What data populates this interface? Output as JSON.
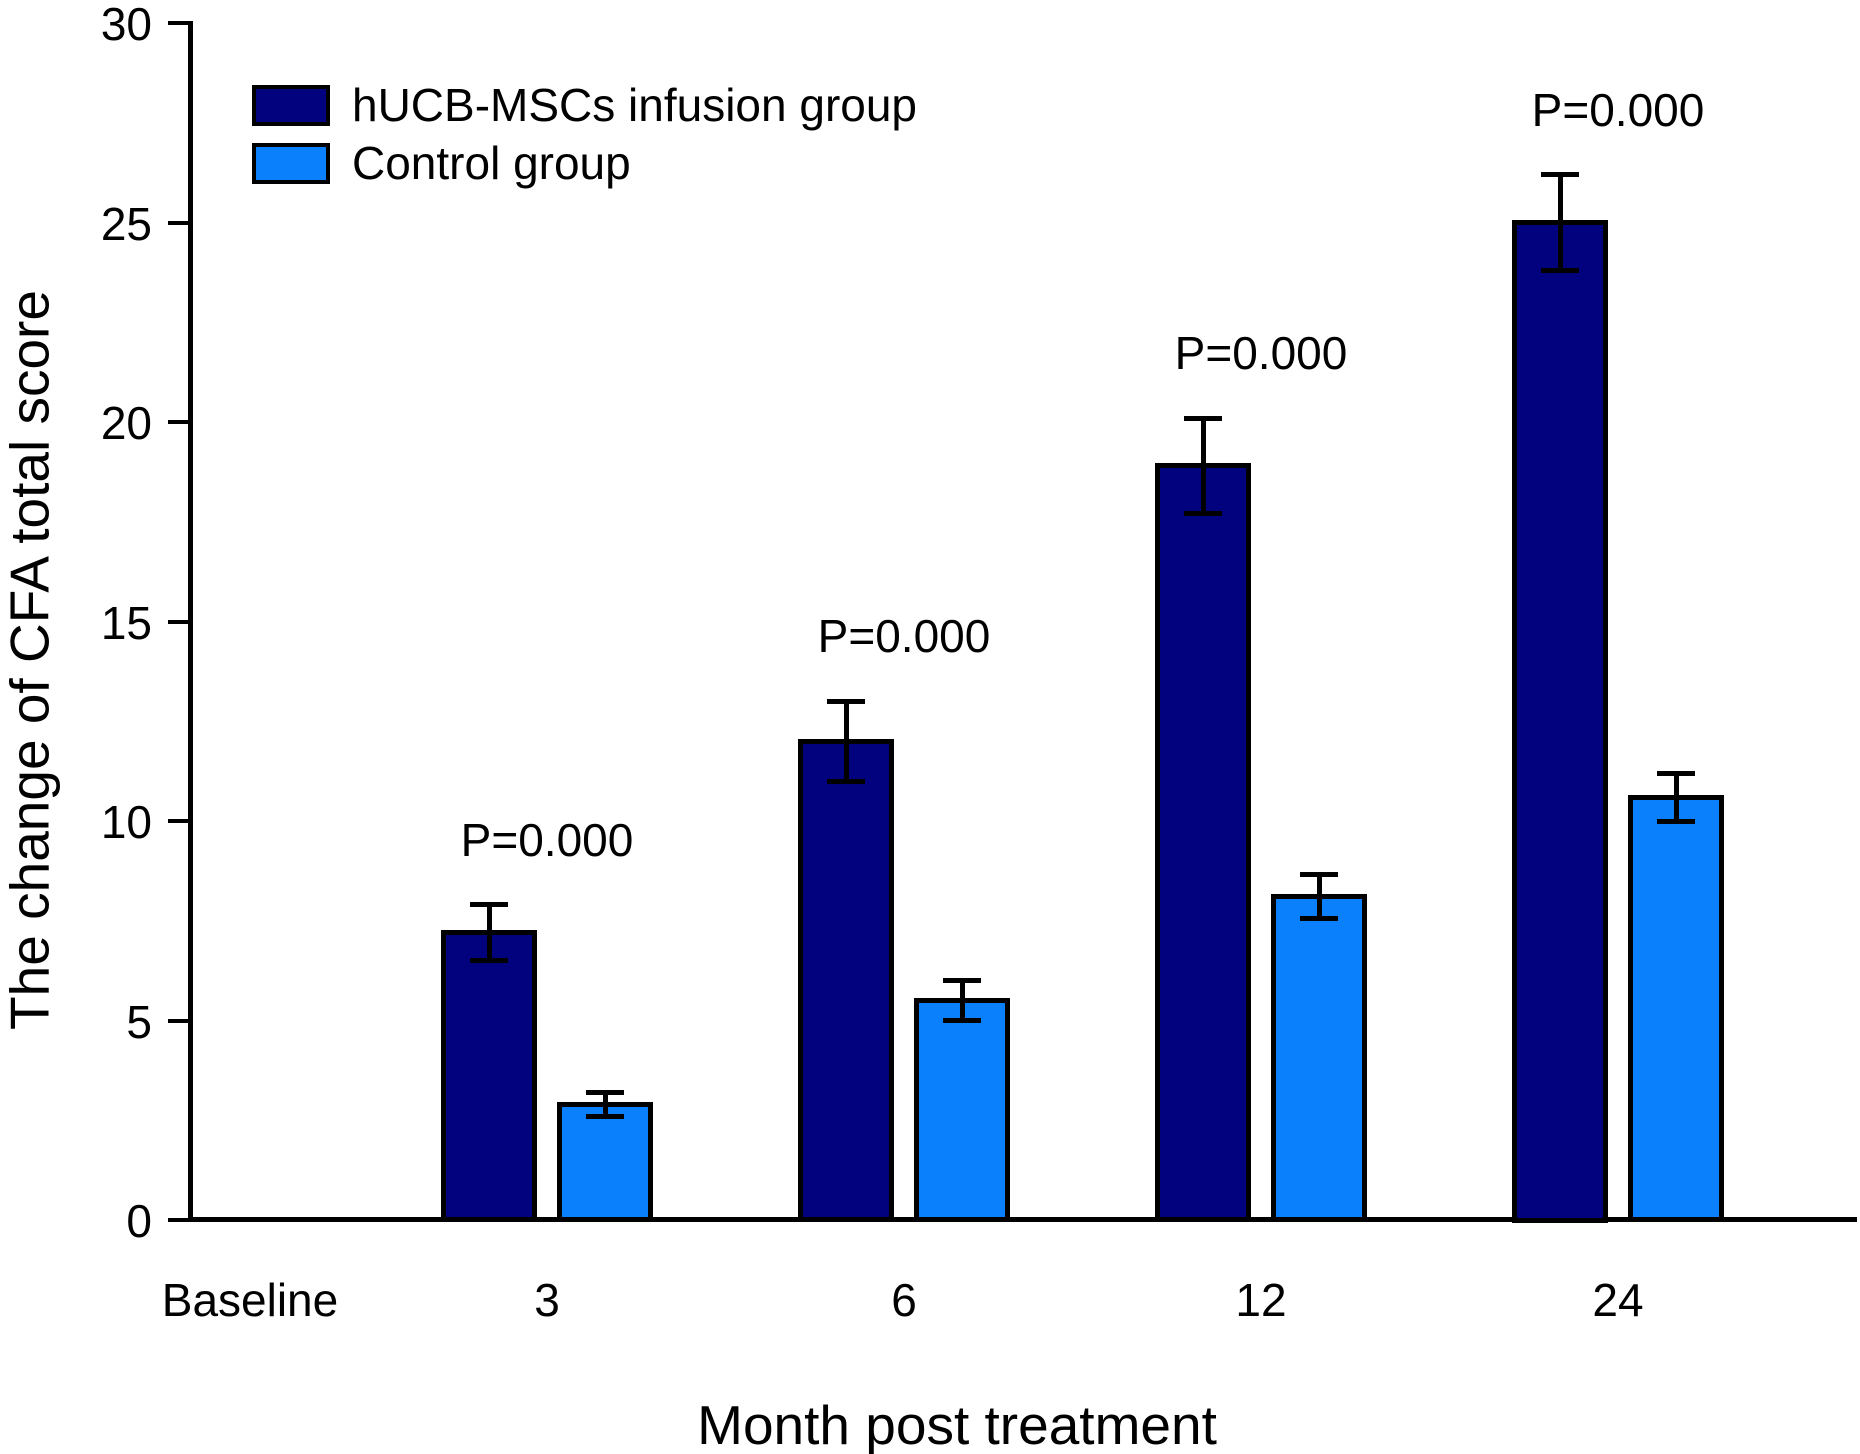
{
  "chart_data": {
    "type": "bar",
    "title": "",
    "xlabel": "Month post treatment",
    "ylabel": "The change of CFA total score",
    "categories": [
      "Baseline",
      "3",
      "6",
      "12",
      "24"
    ],
    "series": [
      {
        "name": "hUCB-MSCs infusion group",
        "color": "#02027e",
        "values": [
          null,
          7.2,
          12.0,
          18.9,
          25.0
        ],
        "errors": [
          null,
          0.7,
          1.0,
          1.2,
          1.2
        ]
      },
      {
        "name": "Control group",
        "color": "#0a80fc",
        "values": [
          null,
          2.9,
          5.5,
          8.1,
          10.6
        ],
        "errors": [
          null,
          0.3,
          0.5,
          0.55,
          0.6
        ]
      }
    ],
    "annotations": [
      {
        "category": "3",
        "text": "P=0.000"
      },
      {
        "category": "6",
        "text": "P=0.000"
      },
      {
        "category": "12",
        "text": "P=0.000"
      },
      {
        "category": "24",
        "text": "P=0.000"
      }
    ],
    "ylim": [
      0,
      30
    ],
    "yticks": [
      0,
      5,
      10,
      15,
      20,
      25,
      30
    ],
    "grid": false,
    "legend_position": "top-left",
    "error_bar_style": "both-caps",
    "background_color": "#ffffff",
    "axis_color": "#000000"
  }
}
